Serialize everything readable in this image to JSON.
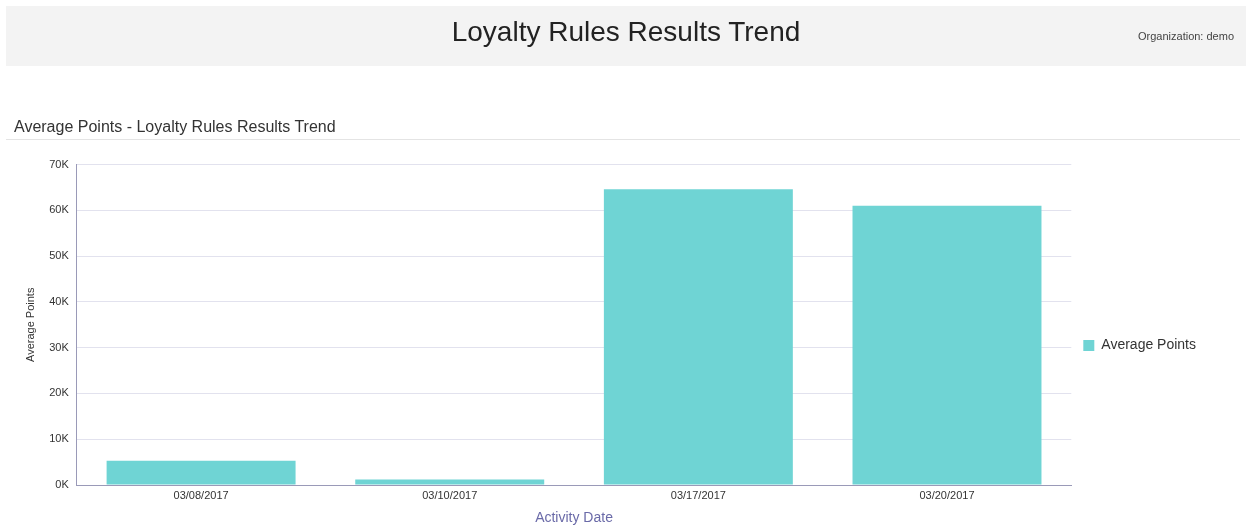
{
  "chart_data": {
    "type": "bar",
    "title": "Loyalty Rules Results Trend",
    "subtitle": "Average Points - Loyalty Rules Results Trend",
    "annotations": [
      "Organization: demo"
    ],
    "xlabel": "Activity Date",
    "ylabel": "Average Points",
    "categories": [
      "03/08/2017",
      "03/10/2017",
      "03/17/2017",
      "03/20/2017"
    ],
    "series": [
      {
        "name": "Average Points",
        "color": "#6fd4d4",
        "values": [
          5300,
          1200,
          64600,
          61000
        ]
      }
    ],
    "ylim": [
      0,
      70000
    ],
    "yticks": [
      {
        "value": 0,
        "label": "0K"
      },
      {
        "value": 10000,
        "label": "10K"
      },
      {
        "value": 20000,
        "label": "20K"
      },
      {
        "value": 30000,
        "label": "30K"
      },
      {
        "value": 40000,
        "label": "40K"
      },
      {
        "value": 50000,
        "label": "50K"
      },
      {
        "value": 60000,
        "label": "60K"
      },
      {
        "value": 70000,
        "label": "70K"
      }
    ],
    "grid": "y",
    "legend": "right"
  }
}
